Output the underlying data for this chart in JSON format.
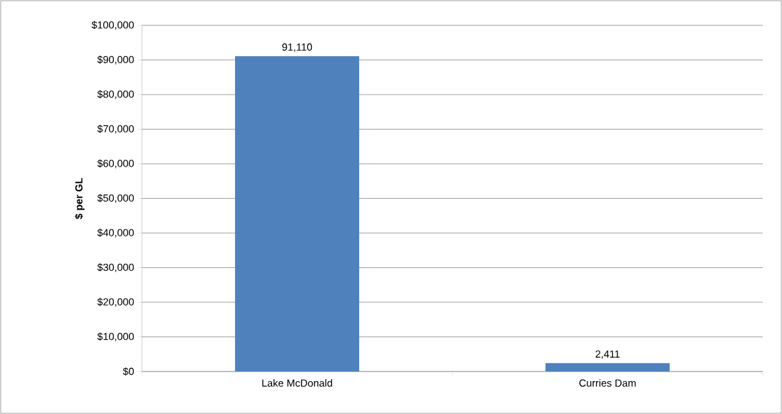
{
  "chart_data": {
    "type": "bar",
    "ylabel": "$ per GL",
    "categories": [
      "Lake McDonald",
      "Curries Dam"
    ],
    "values": [
      91110,
      2411
    ],
    "value_labels": [
      "91,110",
      "2,411"
    ],
    "color": "#4f81bd",
    "ylim": [
      0,
      100000
    ],
    "yticks": [
      {
        "value": 0,
        "label": "$0"
      },
      {
        "value": 10000,
        "label": "$10,000"
      },
      {
        "value": 20000,
        "label": "$20,000"
      },
      {
        "value": 30000,
        "label": "$30,000"
      },
      {
        "value": 40000,
        "label": "$40,000"
      },
      {
        "value": 50000,
        "label": "$50,000"
      },
      {
        "value": 60000,
        "label": "$60,000"
      },
      {
        "value": 70000,
        "label": "$70,000"
      },
      {
        "value": 80000,
        "label": "$80,000"
      },
      {
        "value": 90000,
        "label": "$90,000"
      },
      {
        "value": 100000,
        "label": "$100,000"
      }
    ],
    "grid": "y"
  }
}
